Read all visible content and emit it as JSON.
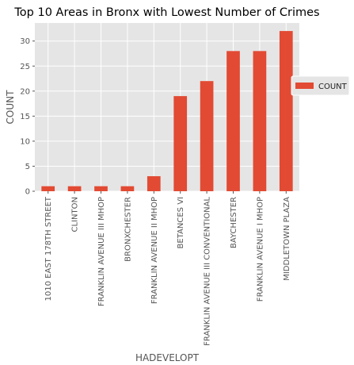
{
  "chart_data": {
    "type": "bar",
    "title": "Top 10 Areas in Bronx with Lowest Number of Crimes",
    "xlabel": "HADEVELOPT",
    "ylabel": "COUNT",
    "categories": [
      "1010 EAST 178TH STREET",
      "CLINTON",
      "FRANKLIN AVENUE III MHOP",
      "BRONXCHESTER",
      "FRANKLIN AVENUE II MHOP",
      "BETANCES VI",
      "FRANKLIN AVENUE III CONVENTIONAL",
      "BAYCHESTER",
      "FRANKLIN AVENUE I MHOP",
      "MIDDLETOWN PLAZA"
    ],
    "series": [
      {
        "name": "COUNT",
        "values": [
          1,
          1,
          1,
          1,
          3,
          19,
          22,
          28,
          28,
          32
        ],
        "color": "#E24A33"
      }
    ],
    "ylim": [
      0,
      33.6
    ],
    "yticks": [
      0,
      5,
      10,
      15,
      20,
      25,
      30
    ],
    "grid": true,
    "legend": "right",
    "colors": {
      "background": "#E5E5E5",
      "grid": "#FFFFFF",
      "bar": "#E24A33"
    }
  }
}
